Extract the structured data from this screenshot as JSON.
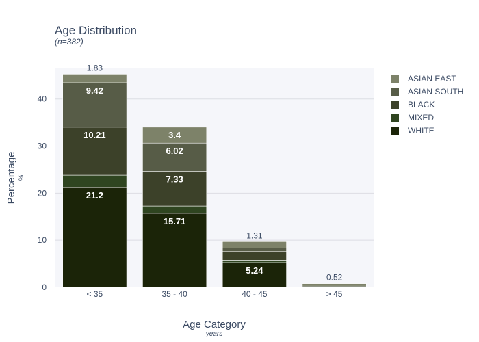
{
  "chart_data": {
    "type": "bar",
    "stacked": true,
    "title": "Age Distribution",
    "subtitle": "(n=382)",
    "xlabel": "Age Category",
    "xlabel_unit": "years",
    "ylabel": "Percentage",
    "ylabel_unit": "%",
    "categories": [
      "< 35",
      "35 - 40",
      "40 - 45",
      "> 45"
    ],
    "ylim": [
      0,
      46.5
    ],
    "yticks": [
      0,
      10,
      20,
      30,
      40
    ],
    "grid": true,
    "legend_position": "right",
    "series": [
      {
        "name": "WHITE",
        "color": "#1b2408",
        "values": [
          21.2,
          15.71,
          5.24,
          0.26
        ]
      },
      {
        "name": "MIXED",
        "color": "#2f4520",
        "values": [
          2.62,
          1.57,
          0.52,
          0.0
        ]
      },
      {
        "name": "BLACK",
        "color": "#3c4129",
        "values": [
          10.21,
          7.33,
          1.83,
          0.0
        ]
      },
      {
        "name": "ASIAN SOUTH",
        "color": "#575c47",
        "values": [
          9.42,
          6.02,
          0.79,
          0.0
        ]
      },
      {
        "name": "ASIAN EAST",
        "color": "#7d8269",
        "values": [
          1.83,
          3.4,
          1.31,
          0.52
        ]
      }
    ],
    "data_labels": [
      {
        "series": "WHITE",
        "category": "< 35",
        "text": "21.2",
        "style": "inside"
      },
      {
        "series": "BLACK",
        "category": "< 35",
        "text": "10.21",
        "style": "inside"
      },
      {
        "series": "ASIAN SOUTH",
        "category": "< 35",
        "text": "9.42",
        "style": "inside"
      },
      {
        "series": "ASIAN EAST",
        "category": "< 35",
        "text": "1.83",
        "style": "outside"
      },
      {
        "series": "WHITE",
        "category": "35 - 40",
        "text": "15.71",
        "style": "inside"
      },
      {
        "series": "BLACK",
        "category": "35 - 40",
        "text": "7.33",
        "style": "inside"
      },
      {
        "series": "ASIAN SOUTH",
        "category": "35 - 40",
        "text": "6.02",
        "style": "inside"
      },
      {
        "series": "ASIAN EAST",
        "category": "35 - 40",
        "text": "3.4",
        "style": "inside"
      },
      {
        "series": "WHITE",
        "category": "40 - 45",
        "text": "5.24",
        "style": "inside"
      },
      {
        "series": "ASIAN EAST",
        "category": "40 - 45",
        "text": "1.31",
        "style": "outside"
      },
      {
        "series": "ASIAN EAST",
        "category": "> 45",
        "text": "0.52",
        "style": "outside"
      }
    ],
    "colors": {
      "plot_background": "#f5f6fa",
      "grid": "#dcdde3",
      "text": "#3b4a63",
      "label_inside": "#ffffff"
    }
  }
}
